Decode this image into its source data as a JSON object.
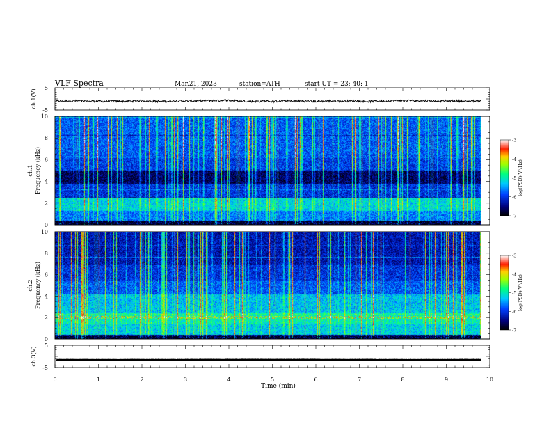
{
  "header": {
    "title": "VLF  Spectra",
    "date": "Mar.21, 2023",
    "station": "station=ATH",
    "start_ut": "start  UT  =    23: 40: 1"
  },
  "chart_data": [
    {
      "type": "line",
      "ylabel": "ch.1(V)",
      "yticks": [
        "5",
        "-5"
      ],
      "ylim": [
        -5,
        5
      ],
      "note_values": "waveform near -1 V",
      "color": "#000000"
    },
    {
      "type": "heatmap",
      "ylabel": "ch.1\nFrequency (kHz)",
      "ylabel_line1": "ch.1",
      "ylabel_line2": "Frequency (kHz)",
      "yticks": [
        "0",
        "2",
        "4",
        "6",
        "8",
        "10"
      ],
      "ylim": [
        0,
        10
      ],
      "colorbar": {
        "label": "log(PSD)(V²/Hz)",
        "ticks": [
          "-3",
          "-4",
          "-5",
          "-6",
          "-7"
        ],
        "range": [
          -7,
          -3
        ]
      }
    },
    {
      "type": "heatmap",
      "ylabel": "ch.2\nFrequency (kHz)",
      "ylabel_line1": "ch.2",
      "ylabel_line2": "Frequency (kHz)",
      "yticks": [
        "0",
        "2",
        "4",
        "6",
        "8",
        "10"
      ],
      "ylim": [
        0,
        10
      ],
      "colorbar": {
        "label": "log(PSD)(V²/Hz)",
        "ticks": [
          "-3",
          "-4",
          "-5",
          "-6",
          "-7"
        ],
        "range": [
          -7,
          -3
        ]
      }
    },
    {
      "type": "line",
      "ylabel": "ch.3(V)",
      "yticks": [
        "5",
        "-5"
      ],
      "ylim": [
        -5,
        5
      ],
      "color": "#000000"
    }
  ],
  "xaxis": {
    "label": "Time  (min)",
    "ticks": [
      "0",
      "1",
      "2",
      "3",
      "4",
      "5",
      "6",
      "7",
      "8",
      "9",
      "10"
    ],
    "xlim": [
      0,
      10
    ],
    "data_end": 9.8
  },
  "colors": {
    "background": "#ffffff",
    "axes": "#000000"
  }
}
